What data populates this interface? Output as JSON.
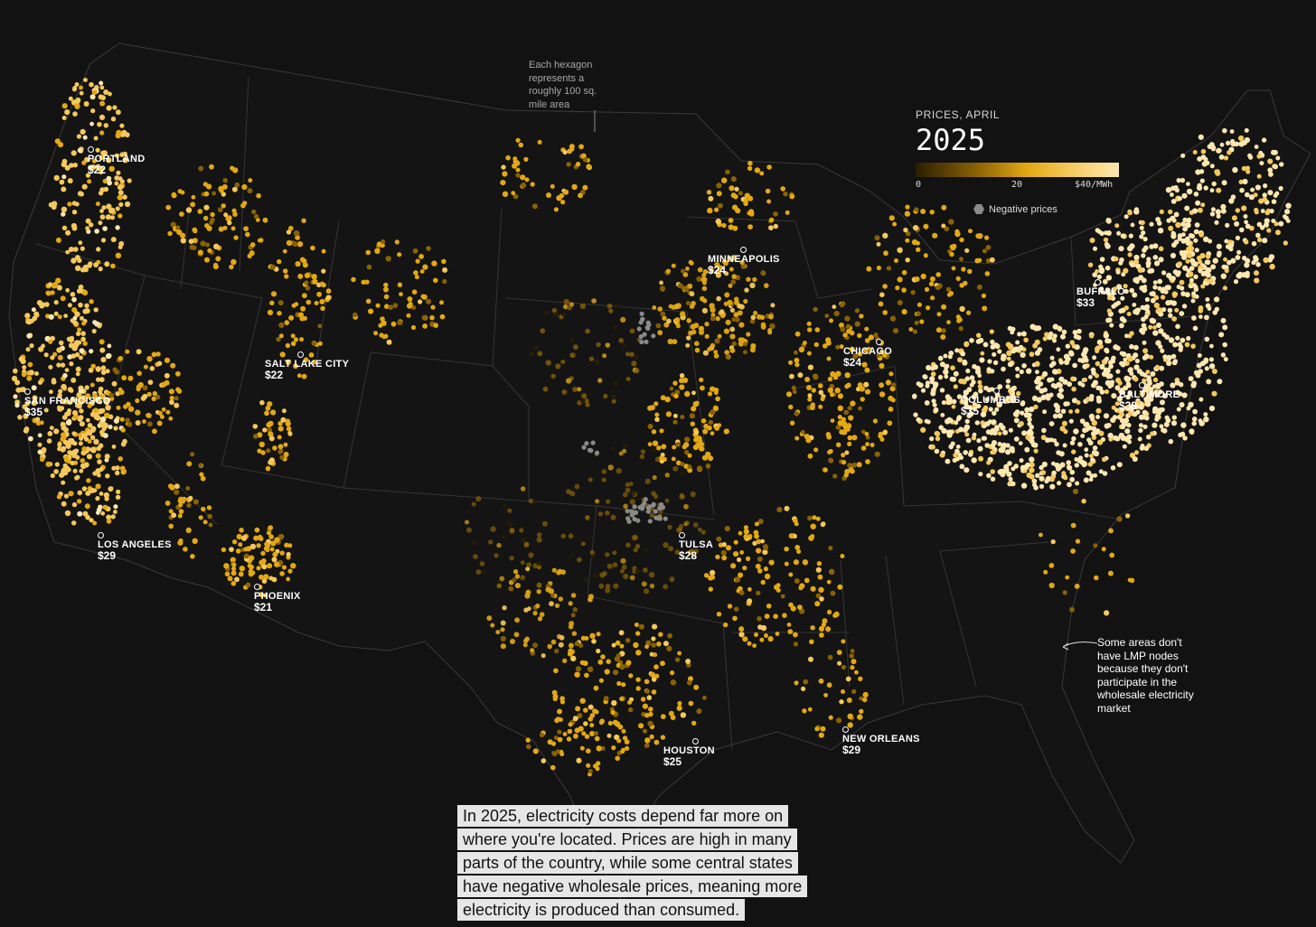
{
  "legend": {
    "kicker": "PRICES, APRIL",
    "year": "2025",
    "ticks": [
      "0",
      "20",
      "$40/MWh"
    ],
    "negative_label": "Negative prices",
    "scale_colors": [
      "#2a1e02",
      "#8a6206",
      "#e3a814",
      "#f5c85b",
      "#fde7b0"
    ],
    "negative_color": "#8a8a8a"
  },
  "annotations": {
    "hexagon_note": [
      "Each hexagon",
      "represents a",
      "roughly 100 sq.",
      "mile area"
    ],
    "lmp_note": [
      "Some areas don't",
      "have LMP nodes",
      "because they don't",
      "participate in the",
      "wholesale electricity",
      "market"
    ]
  },
  "cities": [
    {
      "name": "PORTLAND",
      "price": "$22"
    },
    {
      "name": "SALT LAKE CITY",
      "price": "$22"
    },
    {
      "name": "SAN FRANCISCO",
      "price": "$35"
    },
    {
      "name": "LOS ANGELES",
      "price": "$29"
    },
    {
      "name": "PHOENIX",
      "price": "$21"
    },
    {
      "name": "MINNEAPOLIS",
      "price": "$24"
    },
    {
      "name": "CHICAGO",
      "price": "$24"
    },
    {
      "name": "TULSA",
      "price": "$28"
    },
    {
      "name": "HOUSTON",
      "price": "$25"
    },
    {
      "name": "NEW ORLEANS",
      "price": "$29"
    },
    {
      "name": "COLUMBUS",
      "price": "$35"
    },
    {
      "name": "BALTIMORE",
      "price": "$38"
    },
    {
      "name": "BUFFALO",
      "price": "$33"
    }
  ],
  "caption": [
    "In 2025, electricity costs depend far more on",
    "where you're located. Prices are high in many",
    "parts of the country, while some central states",
    "have negative wholesale prices, meaning more",
    "electricity is produced than consumed."
  ]
}
